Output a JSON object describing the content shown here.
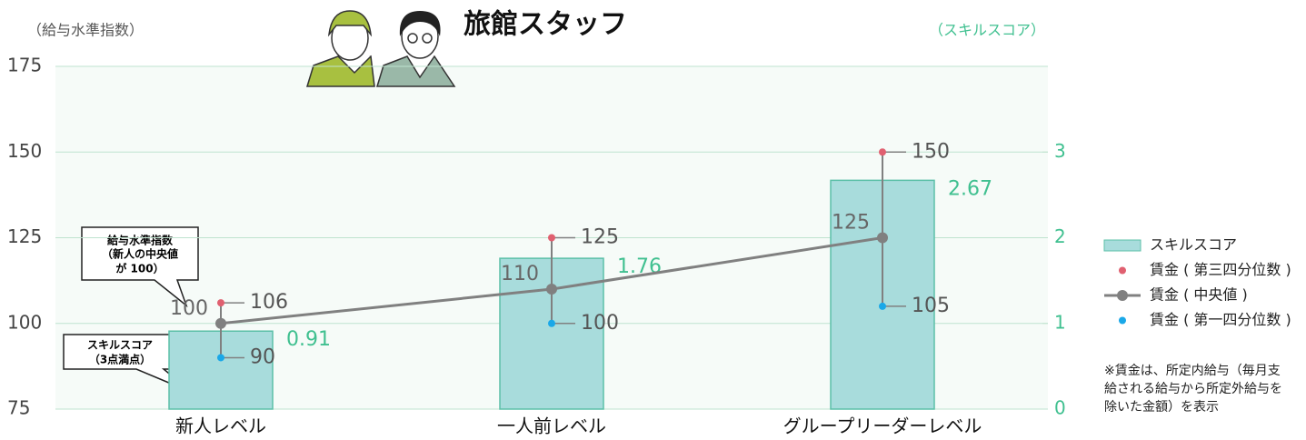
{
  "chart_data": {
    "type": "bar",
    "title": "旅館スタッフ",
    "y_label": "（給与水準指数）",
    "y2_label": "（スキルスコア）",
    "categories": [
      "新人レベル",
      "一人前レベル",
      "グループリーダーレベル"
    ],
    "ylim": [
      75,
      175
    ],
    "yticks": [
      75,
      100,
      125,
      150,
      175
    ],
    "y2lim": [
      0,
      4
    ],
    "y2ticks": [
      0,
      1,
      2,
      3
    ],
    "grid": true,
    "legend": "right",
    "series": [
      {
        "name": "スキルスコア",
        "type": "bar",
        "axis": "y2",
        "color": "#a8dcdc",
        "values": [
          0.91,
          1.76,
          2.67
        ]
      },
      {
        "name": "賃金 ( 第三四分位数 )",
        "type": "scatter",
        "color": "#e06070",
        "values": [
          106,
          125,
          150
        ]
      },
      {
        "name": "賃金 ( 中央値 )",
        "type": "line",
        "color": "#808080",
        "values": [
          100,
          110,
          125
        ]
      },
      {
        "name": "賃金 ( 第一四分位数 )",
        "type": "scatter",
        "color": "#1aa8e8",
        "values": [
          90,
          100,
          105
        ]
      }
    ],
    "annotations": [
      {
        "lines": [
          "給与水準指数",
          "（新人の中央値",
          "が 100）"
        ]
      },
      {
        "lines": [
          "スキルスコア",
          "（3点満点）"
        ]
      }
    ],
    "note": [
      "※賃金は、所定内給与（毎月支",
      "給される給与から所定外給与を",
      "除いた金額）を表示"
    ]
  }
}
